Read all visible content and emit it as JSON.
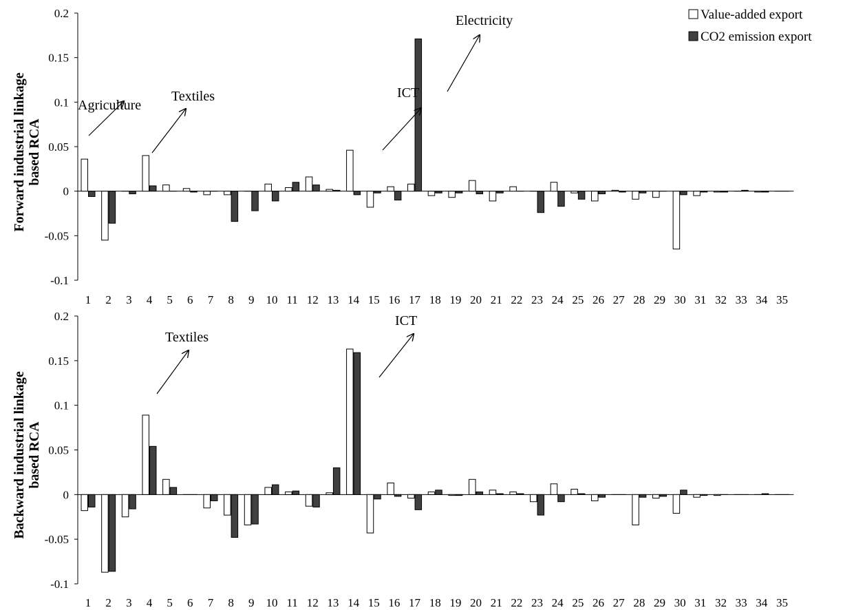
{
  "colors": {
    "value_added": "#ffffff",
    "co2": "#404040",
    "stroke": "#000000"
  },
  "legend": {
    "placement": "top-right",
    "entries": [
      "Value-added export",
      "CO2 emission export"
    ]
  },
  "chart_data": [
    {
      "type": "bar",
      "title": "",
      "xlabel": "",
      "ylabel": "Forward industrial linkage based RCA",
      "ylabel_lines": [
        "Forward industrial linkage",
        "based RCA"
      ],
      "ylim": [
        -0.1,
        0.2
      ],
      "yticks": [
        "-0.1",
        "-0.05",
        "0",
        "0.05",
        "0.1",
        "0.15",
        "0.2"
      ],
      "ytick_values": [
        -0.1,
        -0.05,
        0,
        0.05,
        0.1,
        0.15,
        0.2
      ],
      "categories": [
        "1",
        "2",
        "3",
        "4",
        "5",
        "6",
        "7",
        "8",
        "9",
        "10",
        "11",
        "12",
        "13",
        "14",
        "15",
        "16",
        "17",
        "18",
        "19",
        "20",
        "21",
        "22",
        "23",
        "24",
        "25",
        "26",
        "27",
        "28",
        "29",
        "30",
        "31",
        "32",
        "33",
        "34",
        "35"
      ],
      "series": [
        {
          "name": "Value-added export",
          "values": [
            0.036,
            -0.055,
            0,
            0.04,
            0.007,
            0.003,
            -0.004,
            -0.004,
            0,
            0.008,
            0.004,
            0.016,
            0.002,
            0.046,
            -0.018,
            0.005,
            0.008,
            -0.005,
            -0.007,
            0.012,
            -0.011,
            0.005,
            0,
            0.01,
            -0.002,
            -0.011,
            0.001,
            -0.009,
            -0.007,
            -0.065,
            -0.005,
            -0.001,
            0,
            -0.001,
            0
          ]
        },
        {
          "name": "CO2 emission export",
          "values": [
            -0.006,
            -0.036,
            -0.003,
            0.006,
            0,
            -0.001,
            0,
            -0.034,
            -0.022,
            -0.011,
            0.01,
            0.007,
            0.001,
            -0.004,
            -0.002,
            -0.01,
            0.171,
            -0.002,
            -0.002,
            -0.003,
            -0.002,
            0,
            -0.024,
            -0.017,
            -0.009,
            -0.003,
            -0.001,
            -0.002,
            0,
            -0.004,
            -0.001,
            -0.001,
            0.001,
            -0.001,
            0
          ]
        }
      ],
      "annotations": [
        {
          "label": "Agriculture",
          "category": "1"
        },
        {
          "label": "Textiles",
          "category": "4"
        },
        {
          "label": "ICT",
          "category": "14"
        },
        {
          "label": "Electricity",
          "category": "17"
        }
      ]
    },
    {
      "type": "bar",
      "title": "",
      "xlabel": "",
      "ylabel": "Backward industrial linkage based RCA",
      "ylabel_lines": [
        "Backward industrial linkage",
        "based RCA"
      ],
      "ylim": [
        -0.1,
        0.2
      ],
      "yticks": [
        "-0.1",
        "-0.05",
        "0",
        "0.05",
        "0.1",
        "0.15",
        "0.2"
      ],
      "ytick_values": [
        -0.1,
        -0.05,
        0,
        0.05,
        0.1,
        0.15,
        0.2
      ],
      "categories": [
        "1",
        "2",
        "3",
        "4",
        "5",
        "6",
        "7",
        "8",
        "9",
        "10",
        "11",
        "12",
        "13",
        "14",
        "15",
        "16",
        "17",
        "18",
        "19",
        "20",
        "21",
        "22",
        "23",
        "24",
        "25",
        "26",
        "27",
        "28",
        "29",
        "30",
        "31",
        "32",
        "33",
        "34",
        "35"
      ],
      "series": [
        {
          "name": "Value-added export",
          "values": [
            -0.018,
            -0.087,
            -0.025,
            0.089,
            0.017,
            0,
            -0.015,
            -0.023,
            -0.034,
            0.008,
            0.003,
            -0.013,
            0.002,
            0.163,
            -0.043,
            0.013,
            -0.004,
            0.003,
            -0.001,
            0.017,
            0.005,
            0.003,
            -0.008,
            0.012,
            0.006,
            -0.007,
            0,
            -0.034,
            -0.004,
            -0.021,
            -0.003,
            -0.001,
            0,
            0,
            0
          ]
        },
        {
          "name": "CO2 emission export",
          "values": [
            -0.014,
            -0.086,
            -0.016,
            0.054,
            0.008,
            0,
            -0.007,
            -0.048,
            -0.033,
            0.011,
            0.004,
            -0.014,
            0.03,
            0.159,
            -0.005,
            -0.002,
            -0.017,
            0.005,
            -0.001,
            0.003,
            0.001,
            0.001,
            -0.023,
            -0.008,
            0.001,
            -0.003,
            0,
            -0.003,
            -0.002,
            0.005,
            -0.001,
            0,
            0,
            0.001,
            0
          ]
        }
      ],
      "annotations": [
        {
          "label": "Textiles",
          "category": "4"
        },
        {
          "label": "ICT",
          "category": "14"
        }
      ]
    }
  ]
}
